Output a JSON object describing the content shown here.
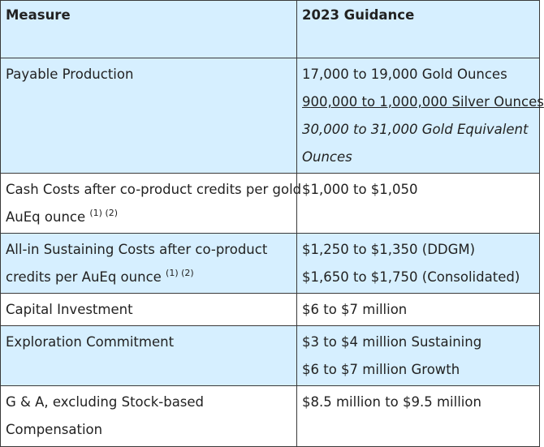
{
  "header": {
    "measure": "Measure",
    "guidance": "2023 Guidance"
  },
  "rows": [
    {
      "measure": "Payable Production",
      "guidance": [
        "17,000 to 19,000 Gold Ounces",
        "900,000 to 1,000,000 Silver Ounces",
        "30,000 to 31,000 Gold Equivalent",
        "Ounces"
      ]
    },
    {
      "measure_line1": "Cash Costs after co-product credits per gold",
      "measure_line2": "AuEq ounce",
      "measure_note": "(1) (2)",
      "guidance": [
        "$1,000 to $1,050"
      ]
    },
    {
      "measure_line1": "All-in Sustaining Costs after co-product",
      "measure_line2": "credits per AuEq ounce",
      "measure_note": "(1) (2)",
      "guidance": [
        "$1,250 to $1,350 (DDGM)",
        "$1,650 to $1,750 (Consolidated)"
      ]
    },
    {
      "measure": "Capital Investment",
      "guidance": [
        "$6 to $7 million"
      ]
    },
    {
      "measure": "Exploration Commitment",
      "guidance": [
        "$3 to $4 million Sustaining",
        "$6 to $7 million Growth"
      ]
    },
    {
      "measure_line1": "G & A, excluding Stock-based",
      "measure_line2": "Compensation",
      "guidance": [
        "$8.5 million to $9.5 million"
      ]
    }
  ],
  "colors": {
    "row_blue": "#d6efff",
    "row_white": "#ffffff",
    "border": "#3a3a3a",
    "text": "#222222"
  }
}
